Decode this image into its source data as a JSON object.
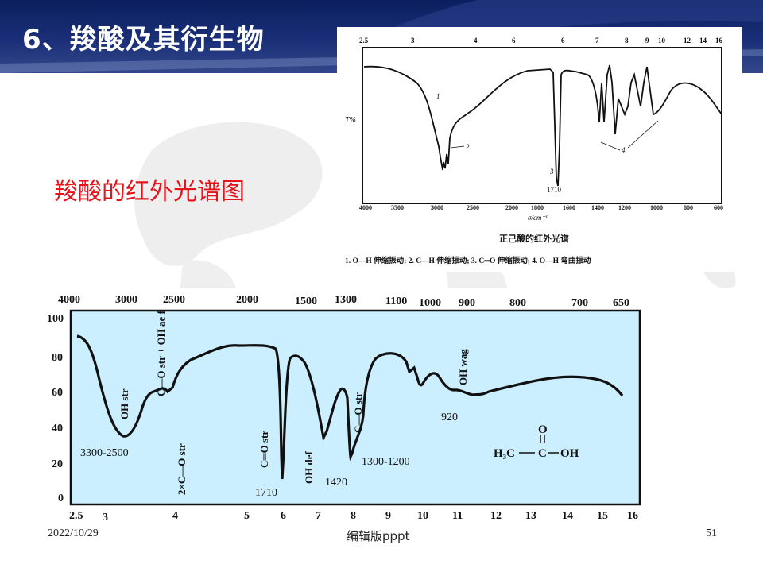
{
  "slide": {
    "title": "6、羧酸及其衍生物",
    "subtitle": "羧酸的红外光谱图",
    "footer_date": "2022/10/29",
    "footer_center": "编辑版pppt",
    "page_number": "51"
  },
  "top_spectrum": {
    "micron_ticks": [
      "2.5",
      "3",
      "4",
      "6",
      "6",
      "7",
      "8",
      "9",
      "10",
      "12",
      "14",
      "16"
    ],
    "wavenumber_ticks": [
      "4000",
      "3500",
      "3000",
      "2500",
      "2000",
      "1800",
      "1600",
      "1400",
      "1200",
      "1000",
      "800",
      "600"
    ],
    "y_label": "T%",
    "x_label": "σ/cm⁻¹",
    "caption": "正己酸的红外光谱",
    "legend": "1. O—H 伸缩振动; 2. C—H 伸缩振动; 3. C═O 伸缩振动; 4. O—H 弯曲振动",
    "peak_labels": [
      "1",
      "2",
      "3",
      "4"
    ],
    "peak_value": "1710"
  },
  "bottom_spectrum": {
    "wavenumber_ticks": [
      "4000",
      "3000",
      "2500",
      "2000",
      "1500",
      "1300",
      "1100",
      "1000",
      "900",
      "800",
      "700",
      "650"
    ],
    "micron_ticks": [
      "2.5",
      "3",
      "4",
      "5",
      "6",
      "7",
      "8",
      "9",
      "10",
      "11",
      "12",
      "13",
      "14",
      "15",
      "16"
    ],
    "y_ticks": [
      "100",
      "80",
      "60",
      "40",
      "20",
      "0"
    ],
    "annotations": {
      "oh_str": "OH str",
      "co_oh": "C—O str + OH ae f",
      "two_co": "2×C—O str",
      "c_o_str": "C═O str",
      "oh_def": "OH def",
      "c_o_str2": "C—O str",
      "oh_wag": "OH wag"
    },
    "band_labels": {
      "b1": "3300-2500",
      "b2": "1710",
      "b3": "1420",
      "b4": "1300-1200",
      "b5": "920"
    },
    "structure": {
      "left": "H₃C",
      "center": "C",
      "right": "OH",
      "top_atom": "O"
    }
  },
  "colors": {
    "header_dark": "#0b1e5e",
    "title_text": "#ffffff",
    "subtitle_red": "#e8121a",
    "spectrum_bg": "#ccefff",
    "curve": "#111111"
  }
}
